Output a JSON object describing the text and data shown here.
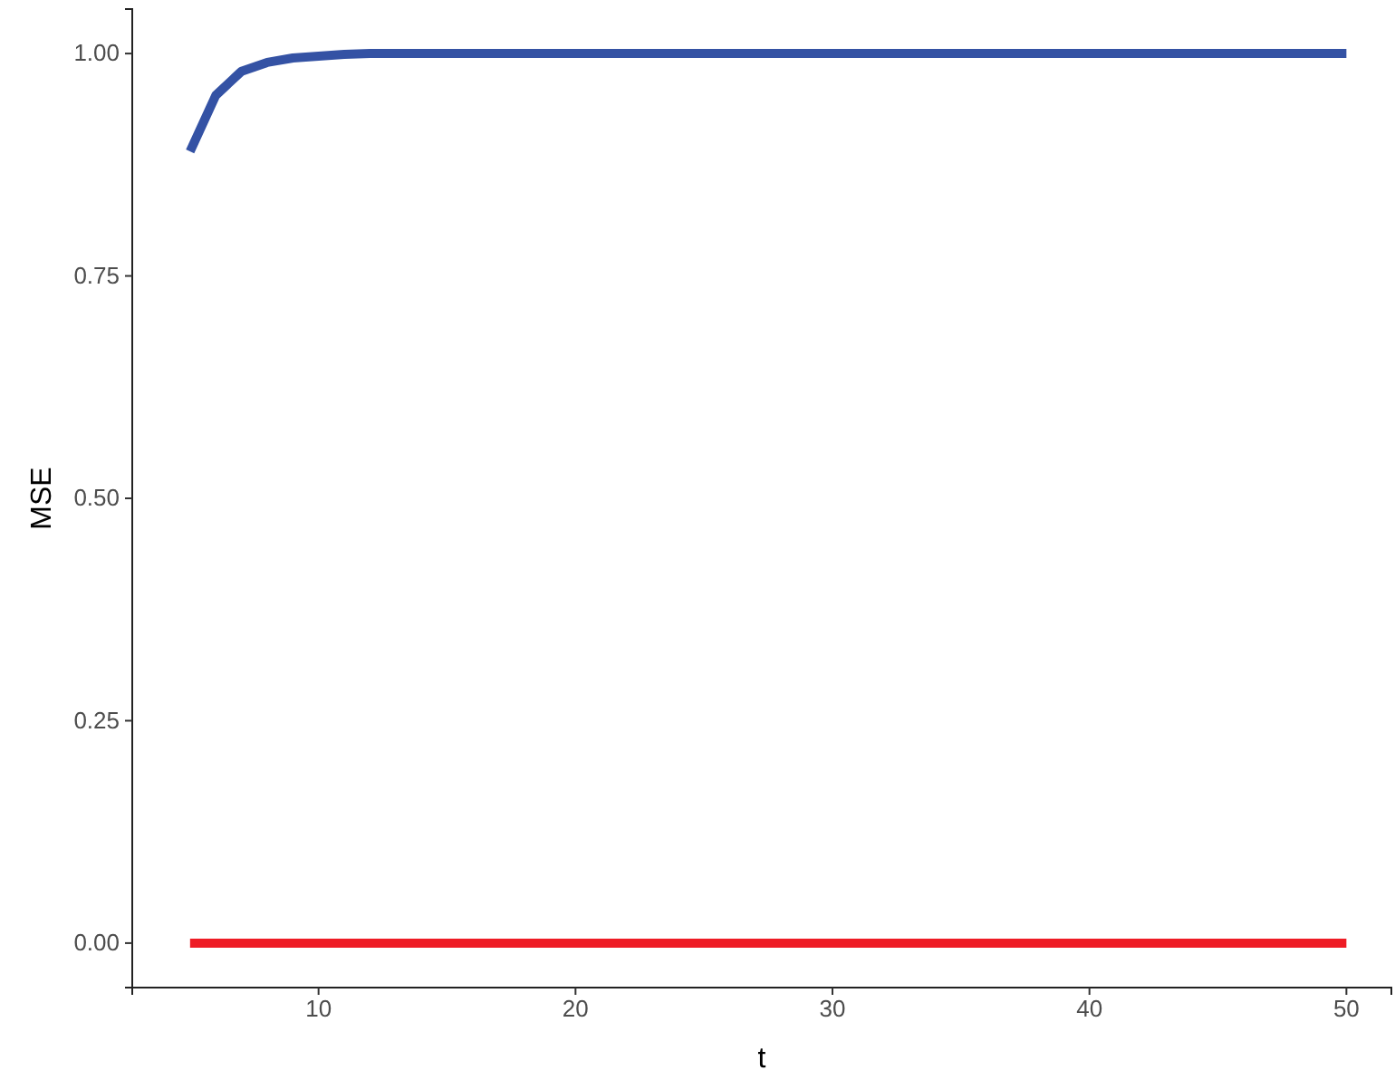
{
  "chart_data": {
    "type": "line",
    "xlabel": "t",
    "ylabel": "MSE",
    "xlim": [
      2.75,
      51.75
    ],
    "ylim": [
      -0.05,
      1.05
    ],
    "xticks": [
      10,
      20,
      30,
      40,
      50
    ],
    "yticks": [
      {
        "value": 0,
        "label": "0.00"
      },
      {
        "value": 0.25,
        "label": "0.25"
      },
      {
        "value": 0.5,
        "label": "0.50"
      },
      {
        "value": 0.75,
        "label": "0.75"
      },
      {
        "value": 1,
        "label": "1.00"
      }
    ],
    "grid": false,
    "line_style": "solid",
    "marker": "none",
    "series": [
      {
        "color": "#3452a4",
        "x": [
          5,
          6,
          7,
          8,
          9,
          10,
          11,
          12,
          50
        ],
        "values": [
          0.89,
          0.953,
          0.98,
          0.99,
          0.995,
          0.997,
          0.999,
          1.0,
          1.0
        ]
      },
      {
        "color": "#ee1c25",
        "x": [
          5,
          50
        ],
        "values": [
          0,
          0
        ]
      }
    ]
  }
}
